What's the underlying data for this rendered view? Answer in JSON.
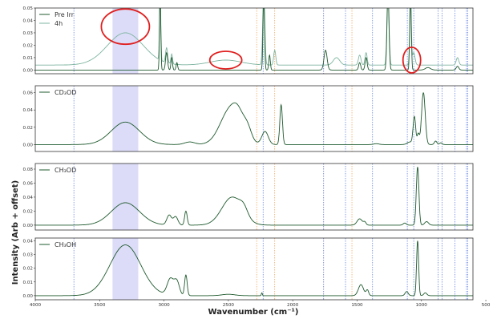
{
  "chart_data": {
    "type": "line",
    "xlabel": "Wavenumber (cm⁻¹)",
    "ylabel": "Intensity (Arb + offset)",
    "x_ticks": [
      "4000",
      "3500",
      "3000",
      "2500",
      "2000",
      "1500",
      "1000",
      "500"
    ],
    "xlim": [
      4000,
      600
    ],
    "x_axis": "reversed",
    "grid": false,
    "legend_position": "top-left",
    "colors": {
      "spectrum_dark": "#1f5a2e",
      "spectrum_light": "#7fb5a0",
      "highlight_band": "#dcdcf8",
      "dashed_orange": "#f0a050",
      "dashed_blue": "#5577dd",
      "circle": "#e02020"
    },
    "highlight_band": [
      3400,
      3200
    ],
    "dashed_lines_orange": [
      2280,
      2140,
      1760,
      1540
    ],
    "dashed_lines_blue": [
      3700,
      2230,
      1760,
      1590,
      1380,
      1110,
      1060,
      870,
      840,
      740,
      650,
      640
    ],
    "panels": [
      {
        "legend": [
          "Pre Irr",
          "4h"
        ],
        "yticks": [
          "0.05",
          "0.04",
          "0.03",
          "0.02",
          "0.01",
          "0.00"
        ],
        "ylim": [
          -0.003,
          0.05
        ],
        "circled_regions": [
          [
            3300,
            0.035
          ],
          [
            2520,
            0.008
          ],
          [
            1075,
            0.008
          ]
        ],
        "series": [
          {
            "name": "Pre Irr",
            "style": "dark",
            "baseline": 0.0,
            "peaks": [
              [
                3030,
                0.06,
                5
              ],
              [
                2980,
                0.014,
                8
              ],
              [
                2940,
                0.01,
                6
              ],
              [
                2900,
                0.006,
                6
              ],
              [
                2225,
                0.06,
                6
              ],
              [
                2180,
                0.012,
                6
              ],
              [
                1745,
                0.016,
                12
              ],
              [
                1480,
                0.006,
                8
              ],
              [
                1430,
                0.01,
                8
              ],
              [
                1260,
                0.06,
                8
              ],
              [
                1085,
                0.06,
                6
              ],
              [
                950,
                0.002,
                20
              ],
              [
                720,
                0.003,
                10
              ]
            ]
          },
          {
            "name": "4h",
            "style": "light",
            "baseline": 0.004,
            "peaks": [
              [
                3300,
                0.026,
                140
              ],
              [
                3030,
                0.06,
                5
              ],
              [
                2980,
                0.012,
                8
              ],
              [
                2940,
                0.008,
                6
              ],
              [
                2520,
                0.004,
                120
              ],
              [
                2225,
                0.06,
                8
              ],
              [
                2140,
                0.012,
                8
              ],
              [
                1660,
                0.006,
                25
              ],
              [
                1480,
                0.008,
                10
              ],
              [
                1430,
                0.01,
                8
              ],
              [
                1260,
                0.06,
                8
              ],
              [
                1085,
                0.06,
                6
              ],
              [
                1060,
                0.01,
                10
              ],
              [
                720,
                0.006,
                10
              ]
            ]
          }
        ]
      },
      {
        "legend": [
          "CD₃OD"
        ],
        "yticks": [
          "0.06",
          "0.04",
          "0.02",
          "0.00"
        ],
        "ylim": [
          -0.008,
          0.068
        ],
        "series": [
          {
            "name": "CD₃OD",
            "style": "dark",
            "baseline": 0.0,
            "peaks": [
              [
                3300,
                0.026,
                110
              ],
              [
                2800,
                0.003,
                40
              ],
              [
                2480,
                0.042,
                80
              ],
              [
                2420,
                0.012,
                40
              ],
              [
                2350,
                0.012,
                30
              ],
              [
                2215,
                0.015,
                25
              ],
              [
                2090,
                0.046,
                10
              ],
              [
                1350,
                0.001,
                20
              ],
              [
                1090,
                0.003,
                20
              ],
              [
                1055,
                0.032,
                10
              ],
              [
                1025,
                0.012,
                8
              ],
              [
                985,
                0.06,
                14
              ],
              [
                890,
                0.004,
                10
              ],
              [
                850,
                0.002,
                10
              ]
            ]
          }
        ]
      },
      {
        "legend": [
          "CH₃OD"
        ],
        "yticks": [
          "0.08",
          "0.06",
          "0.04",
          "0.02",
          "0.00"
        ],
        "ylim": [
          -0.007,
          0.088
        ],
        "series": [
          {
            "name": "CH₃OD",
            "style": "dark",
            "baseline": 0.0,
            "peaks": [
              [
                3300,
                0.032,
                110
              ],
              [
                2960,
                0.014,
                18
              ],
              [
                2910,
                0.012,
                18
              ],
              [
                2830,
                0.02,
                10
              ],
              [
                2470,
                0.04,
                80
              ],
              [
                2380,
                0.01,
                30
              ],
              [
                1480,
                0.009,
                20
              ],
              [
                1440,
                0.004,
                10
              ],
              [
                1130,
                0.003,
                12
              ],
              [
                1030,
                0.083,
                10
              ],
              [
                960,
                0.005,
                15
              ]
            ]
          }
        ]
      },
      {
        "legend": [
          "CH₃OH"
        ],
        "yticks": [
          "0.04",
          "0.03",
          "0.02",
          "0.01",
          "0.00"
        ],
        "ylim": [
          -0.003,
          0.042
        ],
        "series": [
          {
            "name": "CH₃OH",
            "style": "dark",
            "baseline": 0.0,
            "peaks": [
              [
                3300,
                0.037,
                120
              ],
              [
                2950,
                0.012,
                25
              ],
              [
                2900,
                0.01,
                20
              ],
              [
                2830,
                0.015,
                10
              ],
              [
                2500,
                0.001,
                50
              ],
              [
                2240,
                0.002,
                4
              ],
              [
                1470,
                0.008,
                20
              ],
              [
                1420,
                0.004,
                10
              ],
              [
                1115,
                0.003,
                12
              ],
              [
                1030,
                0.04,
                8
              ],
              [
                970,
                0.002,
                12
              ]
            ]
          }
        ]
      }
    ]
  }
}
